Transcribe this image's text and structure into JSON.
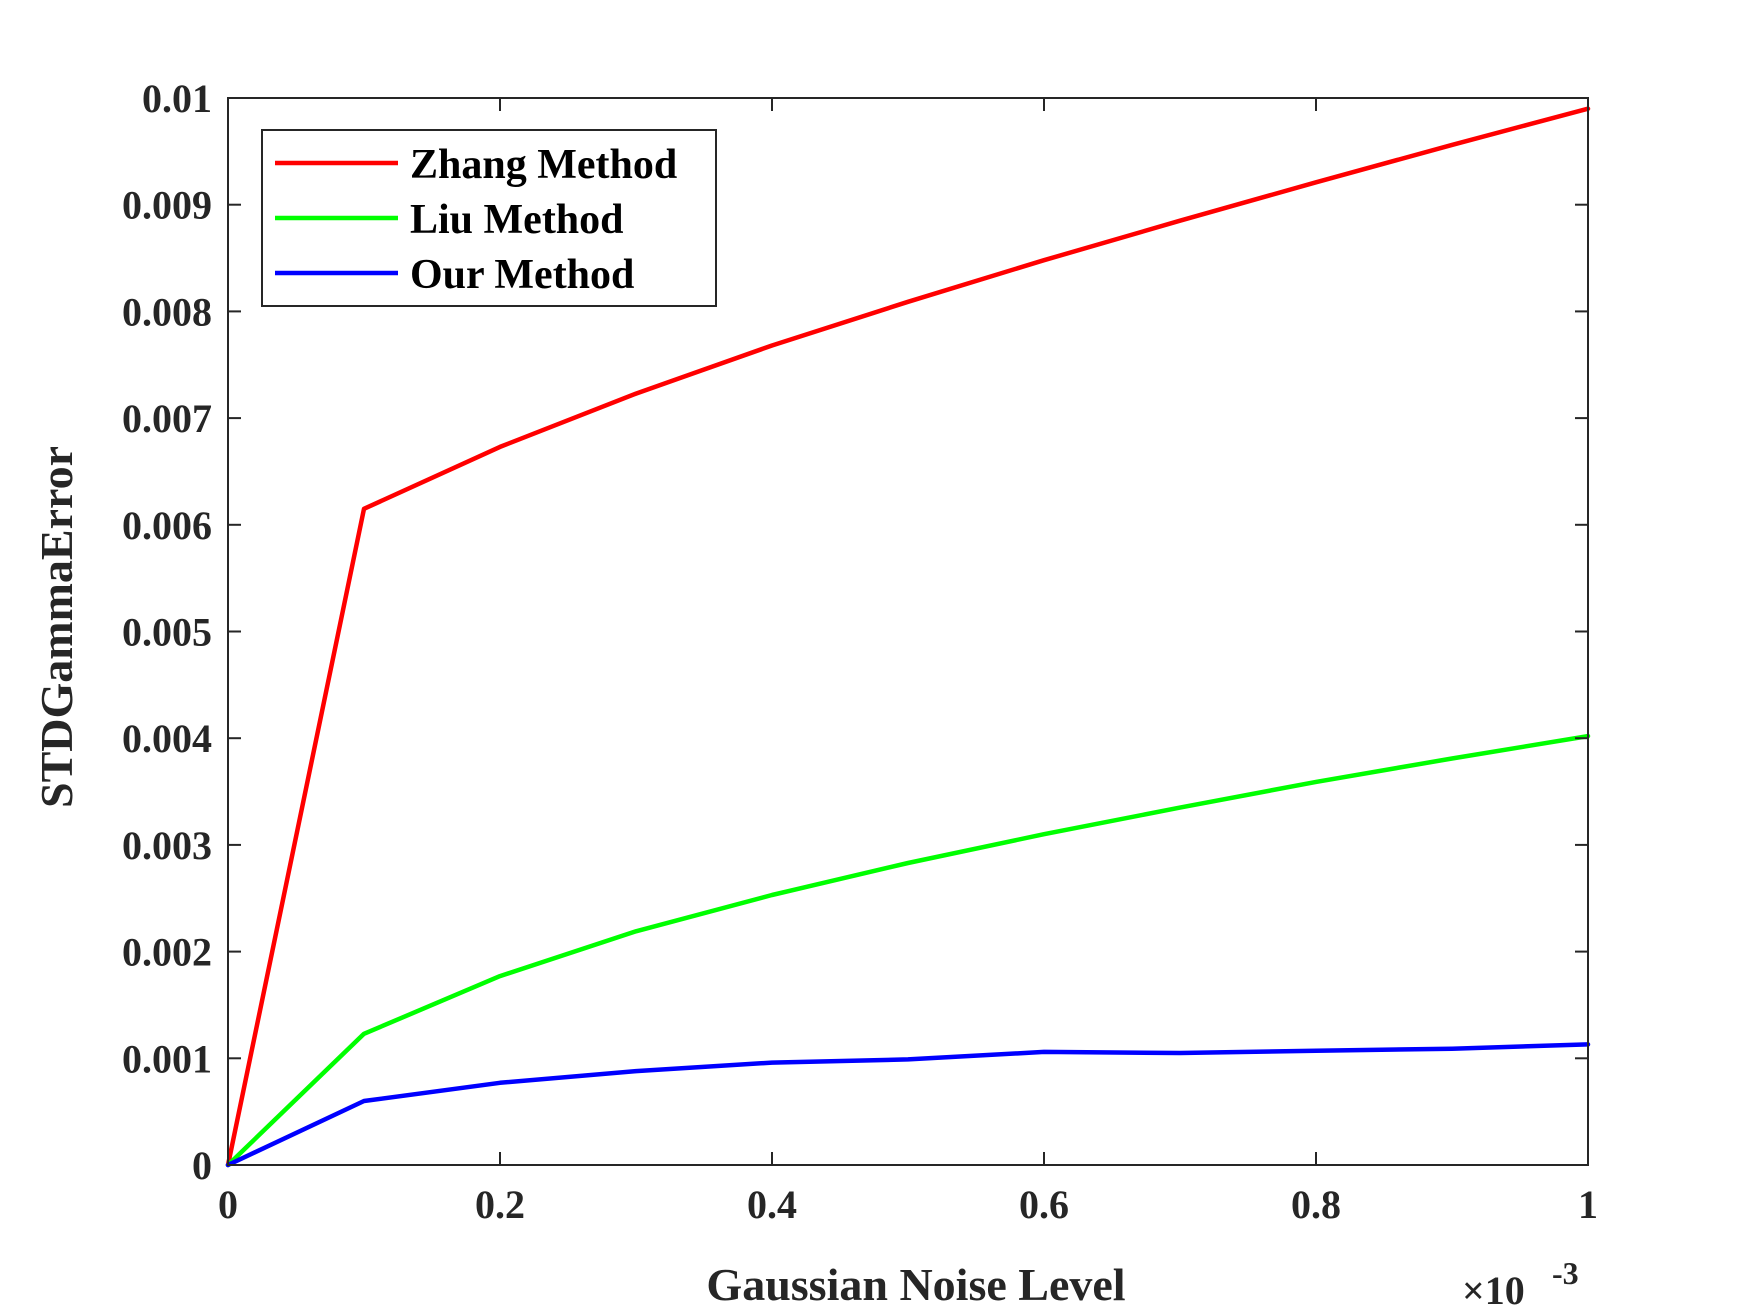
{
  "chart_data": {
    "type": "line",
    "xlabel": "Gaussian Noise Level",
    "ylabel": "STDGammaError",
    "x_exponent_label": {
      "base": "×10",
      "exponent": "-3"
    },
    "xlim": [
      0,
      1
    ],
    "ylim": [
      0,
      0.01
    ],
    "x_ticks": [
      0,
      0.2,
      0.4,
      0.6,
      0.8,
      1
    ],
    "x_tick_labels": [
      "0",
      "0.2",
      "0.4",
      "0.6",
      "0.8",
      "1"
    ],
    "y_ticks": [
      0,
      0.001,
      0.002,
      0.003,
      0.004,
      0.005,
      0.006,
      0.007,
      0.008,
      0.009,
      0.01
    ],
    "y_tick_labels": [
      "0",
      "0.001",
      "0.002",
      "0.003",
      "0.004",
      "0.005",
      "0.006",
      "0.007",
      "0.008",
      "0.009",
      "0.01"
    ],
    "grid": false,
    "legend_position": "top-left",
    "x": [
      0,
      0.1,
      0.2,
      0.3,
      0.4,
      0.5,
      0.6,
      0.7,
      0.8,
      0.9,
      1.0
    ],
    "series": [
      {
        "name": "Zhang Method",
        "color": "#ff0000",
        "values": [
          0,
          0.00615,
          0.00673,
          0.00723,
          0.00768,
          0.00809,
          0.00848,
          0.00885,
          0.00921,
          0.00956,
          0.0099
        ]
      },
      {
        "name": "Liu Method",
        "color": "#00ff00",
        "values": [
          0,
          0.00123,
          0.00177,
          0.00219,
          0.00253,
          0.00283,
          0.0031,
          0.00335,
          0.00359,
          0.00381,
          0.00402
        ]
      },
      {
        "name": "Our Method",
        "color": "#0000ff",
        "values": [
          0,
          0.0006,
          0.00077,
          0.00088,
          0.00096,
          0.00099,
          0.00106,
          0.00105,
          0.00107,
          0.00109,
          0.00113
        ]
      }
    ]
  }
}
